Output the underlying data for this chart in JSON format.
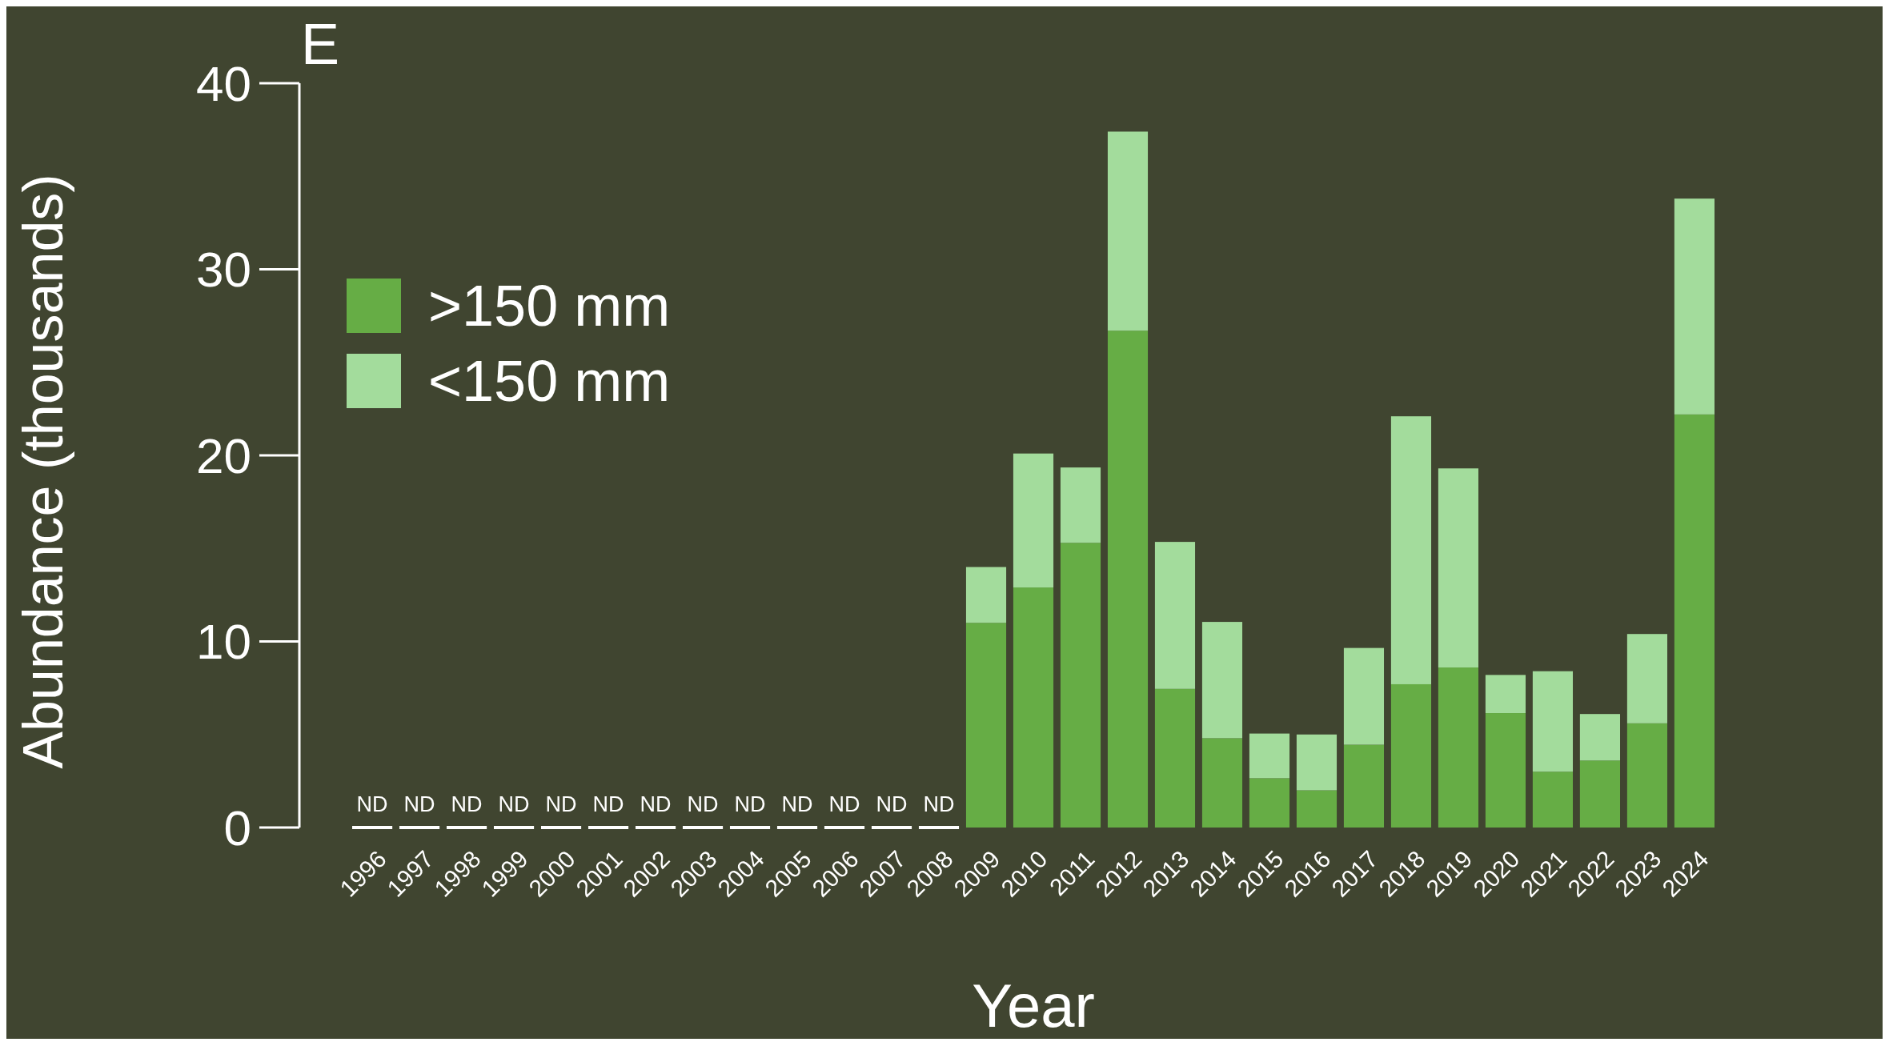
{
  "chart_data": {
    "type": "bar",
    "title": "E",
    "xlabel": "Year",
    "ylabel": "Abundance (thousands)",
    "stacked": true,
    "legend": "top left",
    "grid": false,
    "categories": [
      "1996",
      "1997",
      "1998",
      "1999",
      "2000",
      "2001",
      "2002",
      "2003",
      "2004",
      "2005",
      "2006",
      "2007",
      "2008",
      "2009",
      "2010",
      "2011",
      "2012",
      "2013",
      "2014",
      "2015",
      "2016",
      "2017",
      "2018",
      "2019",
      "2020",
      "2021",
      "2022",
      "2023",
      "2024"
    ],
    "series": [
      {
        "name": ">150 mm",
        "color": "#66ad45",
        "values": [
          null,
          null,
          null,
          null,
          null,
          null,
          null,
          null,
          null,
          null,
          null,
          null,
          null,
          11.0,
          12.9,
          15.3,
          26.7,
          7.45,
          4.8,
          2.65,
          2.0,
          4.45,
          7.7,
          8.6,
          6.15,
          3.0,
          3.6,
          5.6,
          22.2
        ],
        "value_labels": [
          "ND",
          "ND",
          "ND",
          "ND",
          "ND",
          "ND",
          "ND",
          "ND",
          "ND",
          "ND",
          "ND",
          "ND",
          "ND",
          null,
          null,
          null,
          null,
          null,
          null,
          null,
          null,
          null,
          null,
          null,
          null,
          null,
          null,
          null,
          null
        ]
      },
      {
        "name": "<150 mm",
        "color": "#a3dc9c",
        "values": [
          null,
          null,
          null,
          null,
          null,
          null,
          null,
          null,
          null,
          null,
          null,
          null,
          null,
          3.0,
          7.2,
          4.05,
          10.7,
          7.9,
          6.25,
          2.4,
          3.0,
          5.2,
          14.4,
          10.7,
          2.05,
          5.4,
          2.5,
          4.8,
          11.6
        ]
      }
    ],
    "ylim": [
      0,
      40
    ],
    "yticks": [
      0,
      10,
      20,
      30,
      40
    ]
  }
}
